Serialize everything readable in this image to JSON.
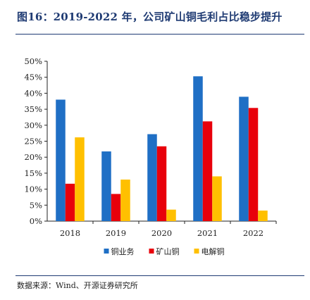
{
  "figure": {
    "title": "图16：2019-2022 年，公司矿山铜毛利占比稳步提升",
    "source": "数据来源：Wind、开源证券研究所"
  },
  "chart_data": {
    "type": "bar",
    "categories": [
      "2018",
      "2019",
      "2020",
      "2021",
      "2022"
    ],
    "series": [
      {
        "name": "铜业务",
        "color": "#1f6fc5",
        "values": [
          38.0,
          21.8,
          27.2,
          45.3,
          38.9
        ]
      },
      {
        "name": "矿山铜",
        "color": "#e8000b",
        "values": [
          11.7,
          8.5,
          23.4,
          31.2,
          35.4
        ]
      },
      {
        "name": "电解铜",
        "color": "#ffc000",
        "values": [
          26.2,
          13.0,
          3.6,
          14.0,
          3.3
        ]
      }
    ],
    "yticks": [
      "0%",
      "5%",
      "10%",
      "15%",
      "20%",
      "25%",
      "30%",
      "35%",
      "40%",
      "45%",
      "50%"
    ],
    "ylim": [
      0,
      50
    ],
    "grid": false,
    "legend_position": "bottom"
  }
}
